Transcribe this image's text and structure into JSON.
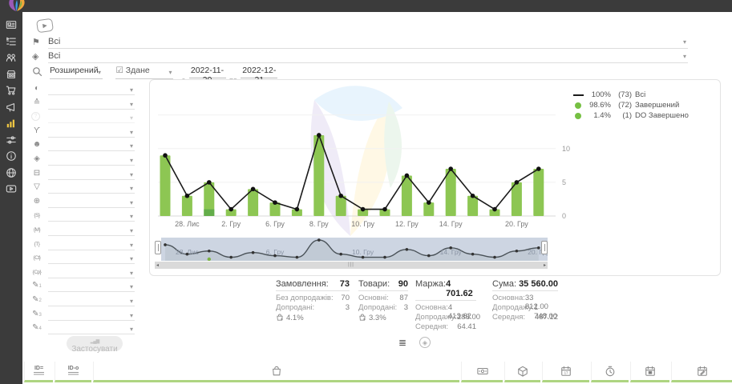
{
  "colors": {
    "bar": "#8dc653",
    "bar_dark": "#63ad4a",
    "line": "#1b1b1b",
    "accent_green": "#aed581",
    "sidebar": "#3b3b3b",
    "active_icon": "#eec643",
    "mini_bg": "#cdd5e2"
  },
  "sidebar": {
    "items": [
      {
        "name": "dashboard"
      },
      {
        "name": "orders"
      },
      {
        "name": "clients"
      },
      {
        "name": "store"
      },
      {
        "name": "purchases"
      },
      {
        "name": "marketing"
      },
      {
        "name": "analytics",
        "active": true
      },
      {
        "name": "automation"
      },
      {
        "name": "info"
      },
      {
        "name": "integrations"
      },
      {
        "name": "tutorials"
      }
    ]
  },
  "filters": {
    "status": {
      "glyph": "⚑",
      "value": "Всі"
    },
    "source": {
      "glyph": "◈",
      "value": "Всі"
    },
    "mode": {
      "value": "Розширений"
    },
    "date_field": {
      "glyph": "☑",
      "value": "Здане"
    },
    "from_label": "з",
    "from_value": "2022-11-20",
    "to_label": "по",
    "to_value": "2022-12-21",
    "apply_label": "Застосувати",
    "panel": [
      {
        "name": "source-globe",
        "glyph": "◐"
      },
      {
        "name": "status-ramp",
        "glyph": "≙"
      },
      {
        "name": "help",
        "glyph": "?",
        "disabled": true,
        "circle": true
      },
      {
        "name": "manager",
        "glyph": "ϒ"
      },
      {
        "name": "client",
        "glyph": "☻"
      },
      {
        "name": "product",
        "glyph": "◈"
      },
      {
        "name": "payment",
        "glyph": "⊟"
      },
      {
        "name": "funnel",
        "glyph": "▽"
      },
      {
        "name": "website",
        "glyph": "⊕"
      },
      {
        "name": "sum",
        "glyph": "{S}",
        "small": true
      },
      {
        "name": "margin",
        "glyph": "{M}",
        "small": true
      },
      {
        "name": "tag",
        "glyph": "{T}",
        "small": true
      },
      {
        "name": "ct",
        "glyph": "{Ct}",
        "small": true
      },
      {
        "name": "cp",
        "glyph": "{Cр}",
        "small": true
      },
      {
        "name": "custom-1",
        "glyph": "✎",
        "sub": "1"
      },
      {
        "name": "custom-2",
        "glyph": "✎",
        "sub": "2"
      },
      {
        "name": "custom-3",
        "glyph": "✎",
        "sub": "3"
      },
      {
        "name": "custom-4",
        "glyph": "✎",
        "sub": "4"
      }
    ]
  },
  "chart_data": {
    "type": "bar+line",
    "values": [
      9,
      3,
      5,
      1,
      4,
      2,
      1,
      12,
      3,
      1,
      1,
      6,
      2,
      7,
      3,
      1,
      5,
      7
    ],
    "line_values": [
      9,
      3,
      5,
      1,
      4,
      2,
      1,
      12,
      3,
      1,
      1,
      6,
      2,
      7,
      3,
      1,
      5,
      7
    ],
    "overlay": {
      "index": 2,
      "value": 1,
      "label": "DO Завершено"
    },
    "x_tick_labels": [
      {
        "index": 1,
        "label": "28. Лис"
      },
      {
        "index": 3,
        "label": "2. Гру"
      },
      {
        "index": 5,
        "label": "6. Гру"
      },
      {
        "index": 7,
        "label": "8. Гру"
      },
      {
        "index": 9,
        "label": "10. Гру"
      },
      {
        "index": 11,
        "label": "12. Гру"
      },
      {
        "index": 13,
        "label": "14. Гру"
      },
      {
        "index": 16,
        "label": "20. Гру"
      }
    ],
    "yticks": [
      0,
      5,
      10
    ],
    "ylim": [
      0,
      20
    ],
    "grid": true,
    "legend_position": "top-right",
    "legend": [
      {
        "swatch": "line",
        "pct": "100%",
        "count": "(73)",
        "label": "Всі"
      },
      {
        "swatch": "dot",
        "pct": "98.6%",
        "count": "(72)",
        "label": "Завершений"
      },
      {
        "swatch": "dot",
        "pct": "1.4%",
        "count": "(1)",
        "label": "DO Завершено"
      }
    ],
    "mini_labels": [
      {
        "index": 1,
        "label": "28. Лис"
      },
      {
        "index": 5,
        "label": "6. Гру"
      },
      {
        "index": 9,
        "label": "10. Гру"
      },
      {
        "index": 13,
        "label": "14. Гру"
      },
      {
        "index": 17,
        "label": "20. Гру"
      }
    ]
  },
  "stats": {
    "columns": [
      {
        "title": "Замовлення:",
        "value": "73",
        "rows": [
          {
            "label": "Без допродажів:",
            "value": "70"
          },
          {
            "label": "Допродані:",
            "value": "3"
          }
        ],
        "percent": "4.1%"
      },
      {
        "title": "Товари:",
        "value": "90",
        "rows": [
          {
            "label": "Основні:",
            "value": "87"
          },
          {
            "label": "Допродані:",
            "value": "3"
          }
        ],
        "percent": "3.3%"
      },
      {
        "title": "Маржа:",
        "value": "4 701.62",
        "rows": [
          {
            "label": "Основна:",
            "value": "4 413.62"
          },
          {
            "label": "Допродажу:",
            "value": "288.00"
          },
          {
            "label": "Середня:",
            "value": "64.41"
          }
        ]
      },
      {
        "title": "Сума:",
        "value": "35 560.00",
        "rows": [
          {
            "label": "Основна:",
            "value": "33 812.00"
          },
          {
            "label": "Допродажу:",
            "value": "1 748.00"
          },
          {
            "label": "Середня:",
            "value": "487.12"
          }
        ]
      }
    ]
  },
  "table_header": {
    "columns": [
      {
        "name": "order-id",
        "type": "id",
        "text": "ID="
      },
      {
        "name": "external-id",
        "type": "id",
        "text": "ID-o"
      },
      {
        "name": "products",
        "type": "bag"
      },
      {
        "name": "payment",
        "type": "banknote"
      },
      {
        "name": "shipment",
        "type": "cube"
      },
      {
        "name": "date-created",
        "type": "calendar",
        "inner": "17"
      },
      {
        "name": "time",
        "type": "clock"
      },
      {
        "name": "date-packed",
        "type": "calendar-box"
      },
      {
        "name": "date-edited",
        "type": "calendar-edit"
      }
    ]
  }
}
